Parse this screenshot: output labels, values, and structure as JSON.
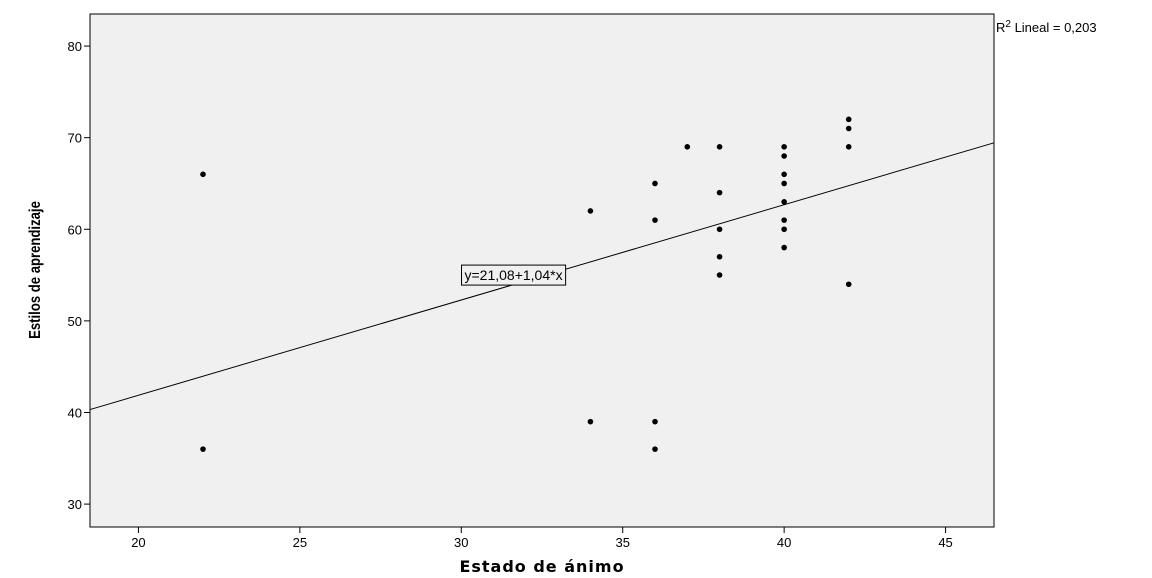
{
  "chart_data": {
    "type": "scatter",
    "title": "",
    "xlabel": "Estado de ánimo",
    "ylabel": "Estilos de aprendizaje",
    "xlim": [
      18.5,
      46.5
    ],
    "ylim": [
      27.5,
      83.5
    ],
    "xticks": [
      20,
      25,
      30,
      35,
      40,
      45
    ],
    "yticks": [
      30,
      40,
      50,
      60,
      70,
      80
    ],
    "grid": false,
    "background": "#f0f0f0",
    "marker_color": "#000000",
    "points": [
      {
        "x": 22,
        "y": 66
      },
      {
        "x": 22,
        "y": 36
      },
      {
        "x": 34,
        "y": 62
      },
      {
        "x": 34,
        "y": 39
      },
      {
        "x": 36,
        "y": 65
      },
      {
        "x": 36,
        "y": 61
      },
      {
        "x": 36,
        "y": 39
      },
      {
        "x": 36,
        "y": 36
      },
      {
        "x": 37,
        "y": 69
      },
      {
        "x": 38,
        "y": 69
      },
      {
        "x": 38,
        "y": 64
      },
      {
        "x": 38,
        "y": 60
      },
      {
        "x": 38,
        "y": 57
      },
      {
        "x": 38,
        "y": 55
      },
      {
        "x": 40,
        "y": 69
      },
      {
        "x": 40,
        "y": 68
      },
      {
        "x": 40,
        "y": 66
      },
      {
        "x": 40,
        "y": 65
      },
      {
        "x": 40,
        "y": 63
      },
      {
        "x": 40,
        "y": 61
      },
      {
        "x": 40,
        "y": 60
      },
      {
        "x": 40,
        "y": 58
      },
      {
        "x": 42,
        "y": 72
      },
      {
        "x": 42,
        "y": 71
      },
      {
        "x": 42,
        "y": 69
      },
      {
        "x": 42,
        "y": 54
      }
    ],
    "fit_line": {
      "intercept": 21.08,
      "slope": 1.04,
      "label": "y=21,08+1,04*x",
      "label_anchor": {
        "x": 30.1,
        "y": 55
      }
    },
    "r2_label": {
      "prefix": "R",
      "sup": "2",
      "text": " Lineal = 0,203"
    }
  }
}
